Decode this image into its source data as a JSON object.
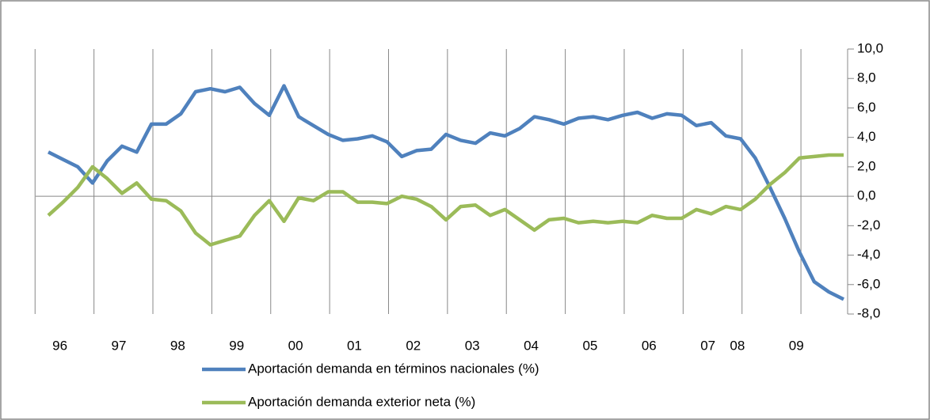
{
  "chart_data": {
    "type": "line",
    "categories": [
      null,
      "96",
      null,
      null,
      null,
      "97",
      null,
      null,
      null,
      "98",
      null,
      null,
      null,
      "99",
      null,
      null,
      null,
      "00",
      null,
      null,
      null,
      "01",
      null,
      null,
      null,
      "02",
      null,
      null,
      null,
      "03",
      null,
      null,
      null,
      "04",
      null,
      null,
      null,
      "05",
      null,
      null,
      null,
      "06",
      null,
      null,
      null,
      "07",
      null,
      "08",
      null,
      null,
      null,
      "09",
      null,
      null,
      null
    ],
    "series": [
      {
        "name": "Aportación demanda en términos nacionales (%)",
        "color": "#4f81bd",
        "values": [
          3.0,
          2.5,
          2.0,
          0.9,
          2.4,
          3.4,
          3.0,
          4.9,
          4.9,
          5.6,
          7.1,
          7.3,
          7.1,
          7.4,
          6.3,
          5.5,
          7.5,
          5.4,
          4.8,
          4.2,
          3.8,
          3.9,
          4.1,
          3.7,
          2.7,
          3.1,
          3.2,
          4.2,
          3.8,
          3.6,
          4.3,
          4.1,
          4.6,
          5.4,
          5.2,
          4.9,
          5.3,
          5.4,
          5.2,
          5.5,
          5.7,
          5.3,
          5.6,
          5.5,
          4.8,
          5.0,
          4.1,
          3.9,
          2.6,
          0.6,
          -1.5,
          -3.8,
          -5.8,
          -6.5,
          -7.0
        ]
      },
      {
        "name": "Aportación demanda exterior neta (%)",
        "color": "#9bbb59",
        "values": [
          -1.3,
          -0.4,
          0.6,
          2.0,
          1.2,
          0.2,
          0.9,
          -0.2,
          -0.3,
          -1.0,
          -2.5,
          -3.3,
          -3.0,
          -2.7,
          -1.3,
          -0.3,
          -1.7,
          -0.1,
          -0.3,
          0.3,
          0.3,
          -0.4,
          -0.4,
          -0.5,
          0.0,
          -0.2,
          -0.7,
          -1.6,
          -0.7,
          -0.6,
          -1.3,
          -0.9,
          -1.6,
          -2.3,
          -1.6,
          -1.5,
          -1.8,
          -1.7,
          -1.8,
          -1.7,
          -1.8,
          -1.3,
          -1.5,
          -1.5,
          -0.9,
          -1.2,
          -0.7,
          -0.9,
          -0.2,
          0.8,
          1.6,
          2.6,
          2.7,
          2.8,
          2.8
        ]
      }
    ],
    "ylim": [
      -8,
      10
    ],
    "yticks": [
      {
        "value": -8,
        "label": "-8,0"
      },
      {
        "value": -6,
        "label": "-6,0"
      },
      {
        "value": -4,
        "label": "-4,0"
      },
      {
        "value": -2,
        "label": "-2,0"
      },
      {
        "value": 0,
        "label": "0,0"
      },
      {
        "value": 2,
        "label": "2,0"
      },
      {
        "value": 4,
        "label": "4,0"
      },
      {
        "value": 6,
        "label": "6,0"
      },
      {
        "value": 8,
        "label": "8,0"
      },
      {
        "value": 10,
        "label": "10,0"
      }
    ],
    "y_axis_side": "right",
    "x_grid": true,
    "legend": "bottom"
  }
}
